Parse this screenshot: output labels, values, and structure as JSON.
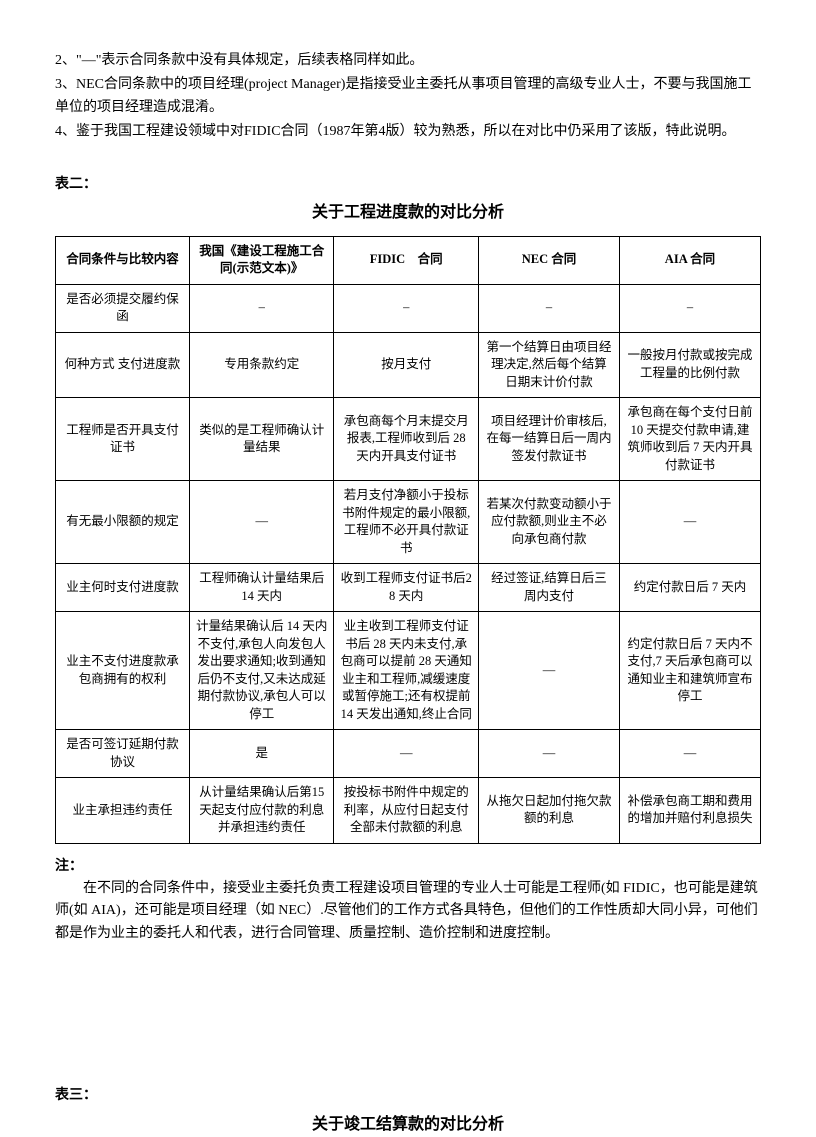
{
  "topnotes": [
    "2、\"—\"表示合同条款中没有具体规定，后续表格同样如此。",
    "3、NEC合同条款中的项目经理(project Manager)是指接受业主委托从事项目管理的高级专业人士，不要与我国施工单位的项目经理造成混淆。",
    "4、鉴于我国工程建设领域中对FIDIC合同（1987年第4版）较为熟悉，所以在对比中仍采用了该版，特此说明。"
  ],
  "table2": {
    "section_label": "表二：",
    "title": "关于工程进度款的对比分析",
    "columns": [
      "合同条件与比较内容",
      "我国《建设工程施工合同(示范文本)》",
      "FIDIC　合同",
      "NEC 合同",
      "AIA 合同"
    ],
    "rows": [
      [
        "是否必须提交履约保函",
        "–",
        "–",
        "–",
        "–"
      ],
      [
        "何种方式 支付进度款",
        "专用条款约定",
        "按月支付",
        "第一个结算日由项目经理决定,然后每个结算日期末计价付款",
        "一般按月付款或按完成工程量的比例付款"
      ],
      [
        "工程师是否开具支付证书",
        "类似的是工程师确认计量结果",
        "承包商每个月末提交月报表,工程师收到后 28 天内开具支付证书",
        "项目经理计价审核后,在每一结算日后一周内签发付款证书",
        "承包商在每个支付日前10 天提交付款申请,建筑师收到后 7 天内开具付款证书"
      ],
      [
        "有无最小限额的规定",
        "—",
        "若月支付净额小于投标书附件规定的最小限额,工程师不必开具付款证书",
        "若某次付款变动额小于应付款额,则业主不必向承包商付款",
        "—"
      ],
      [
        "业主何时支付进度款",
        "工程师确认计量结果后 14 天内",
        "收到工程师支付证书后28 天内",
        "经过签证,结算日后三周内支付",
        "约定付款日后 7 天内"
      ],
      [
        "业主不支付进度款承包商拥有的权利",
        "计量结果确认后 14 天内不支付,承包人向发包人发出要求通知;收到通知后仍不支付,又未达成延期付款协议,承包人可以停工",
        "业主收到工程师支付证书后 28 天内未支付,承包商可以提前 28 天通知业主和工程师,减缓速度或暂停施工;还有权提前 14 天发出通知,终止合同",
        "—",
        "约定付款日后 7 天内不支付,7 天后承包商可以通知业主和建筑师宣布停工"
      ],
      [
        "是否可签订延期付款协议",
        "是",
        "—",
        "—",
        "—"
      ],
      [
        "业主承担违约责任",
        "从计量结果确认后第15 天起支付应付款的利息并承担违约责任",
        "按投标书附件中规定的利率，从应付日起支付全部未付款额的利息",
        "从拖欠日起加付拖欠款额的利息",
        "补偿承包商工期和费用的增加并赔付利息损失"
      ]
    ]
  },
  "footnote": {
    "label": "注：",
    "text": "在不同的合同条件中，接受业主委托负责工程建设项目管理的专业人士可能是工程师(如 FIDIC，也可能是建筑师(如 AIA)，还可能是项目经理（如 NEC）.尽管他们的工作方式各具特色，但他们的工作性质却大同小异，可他们都是作为业主的委托人和代表，进行合同管理、质量控制、造价控制和进度控制。"
  },
  "table3": {
    "section_label": "表三：",
    "title": "关于竣工结算款的对比分析"
  }
}
